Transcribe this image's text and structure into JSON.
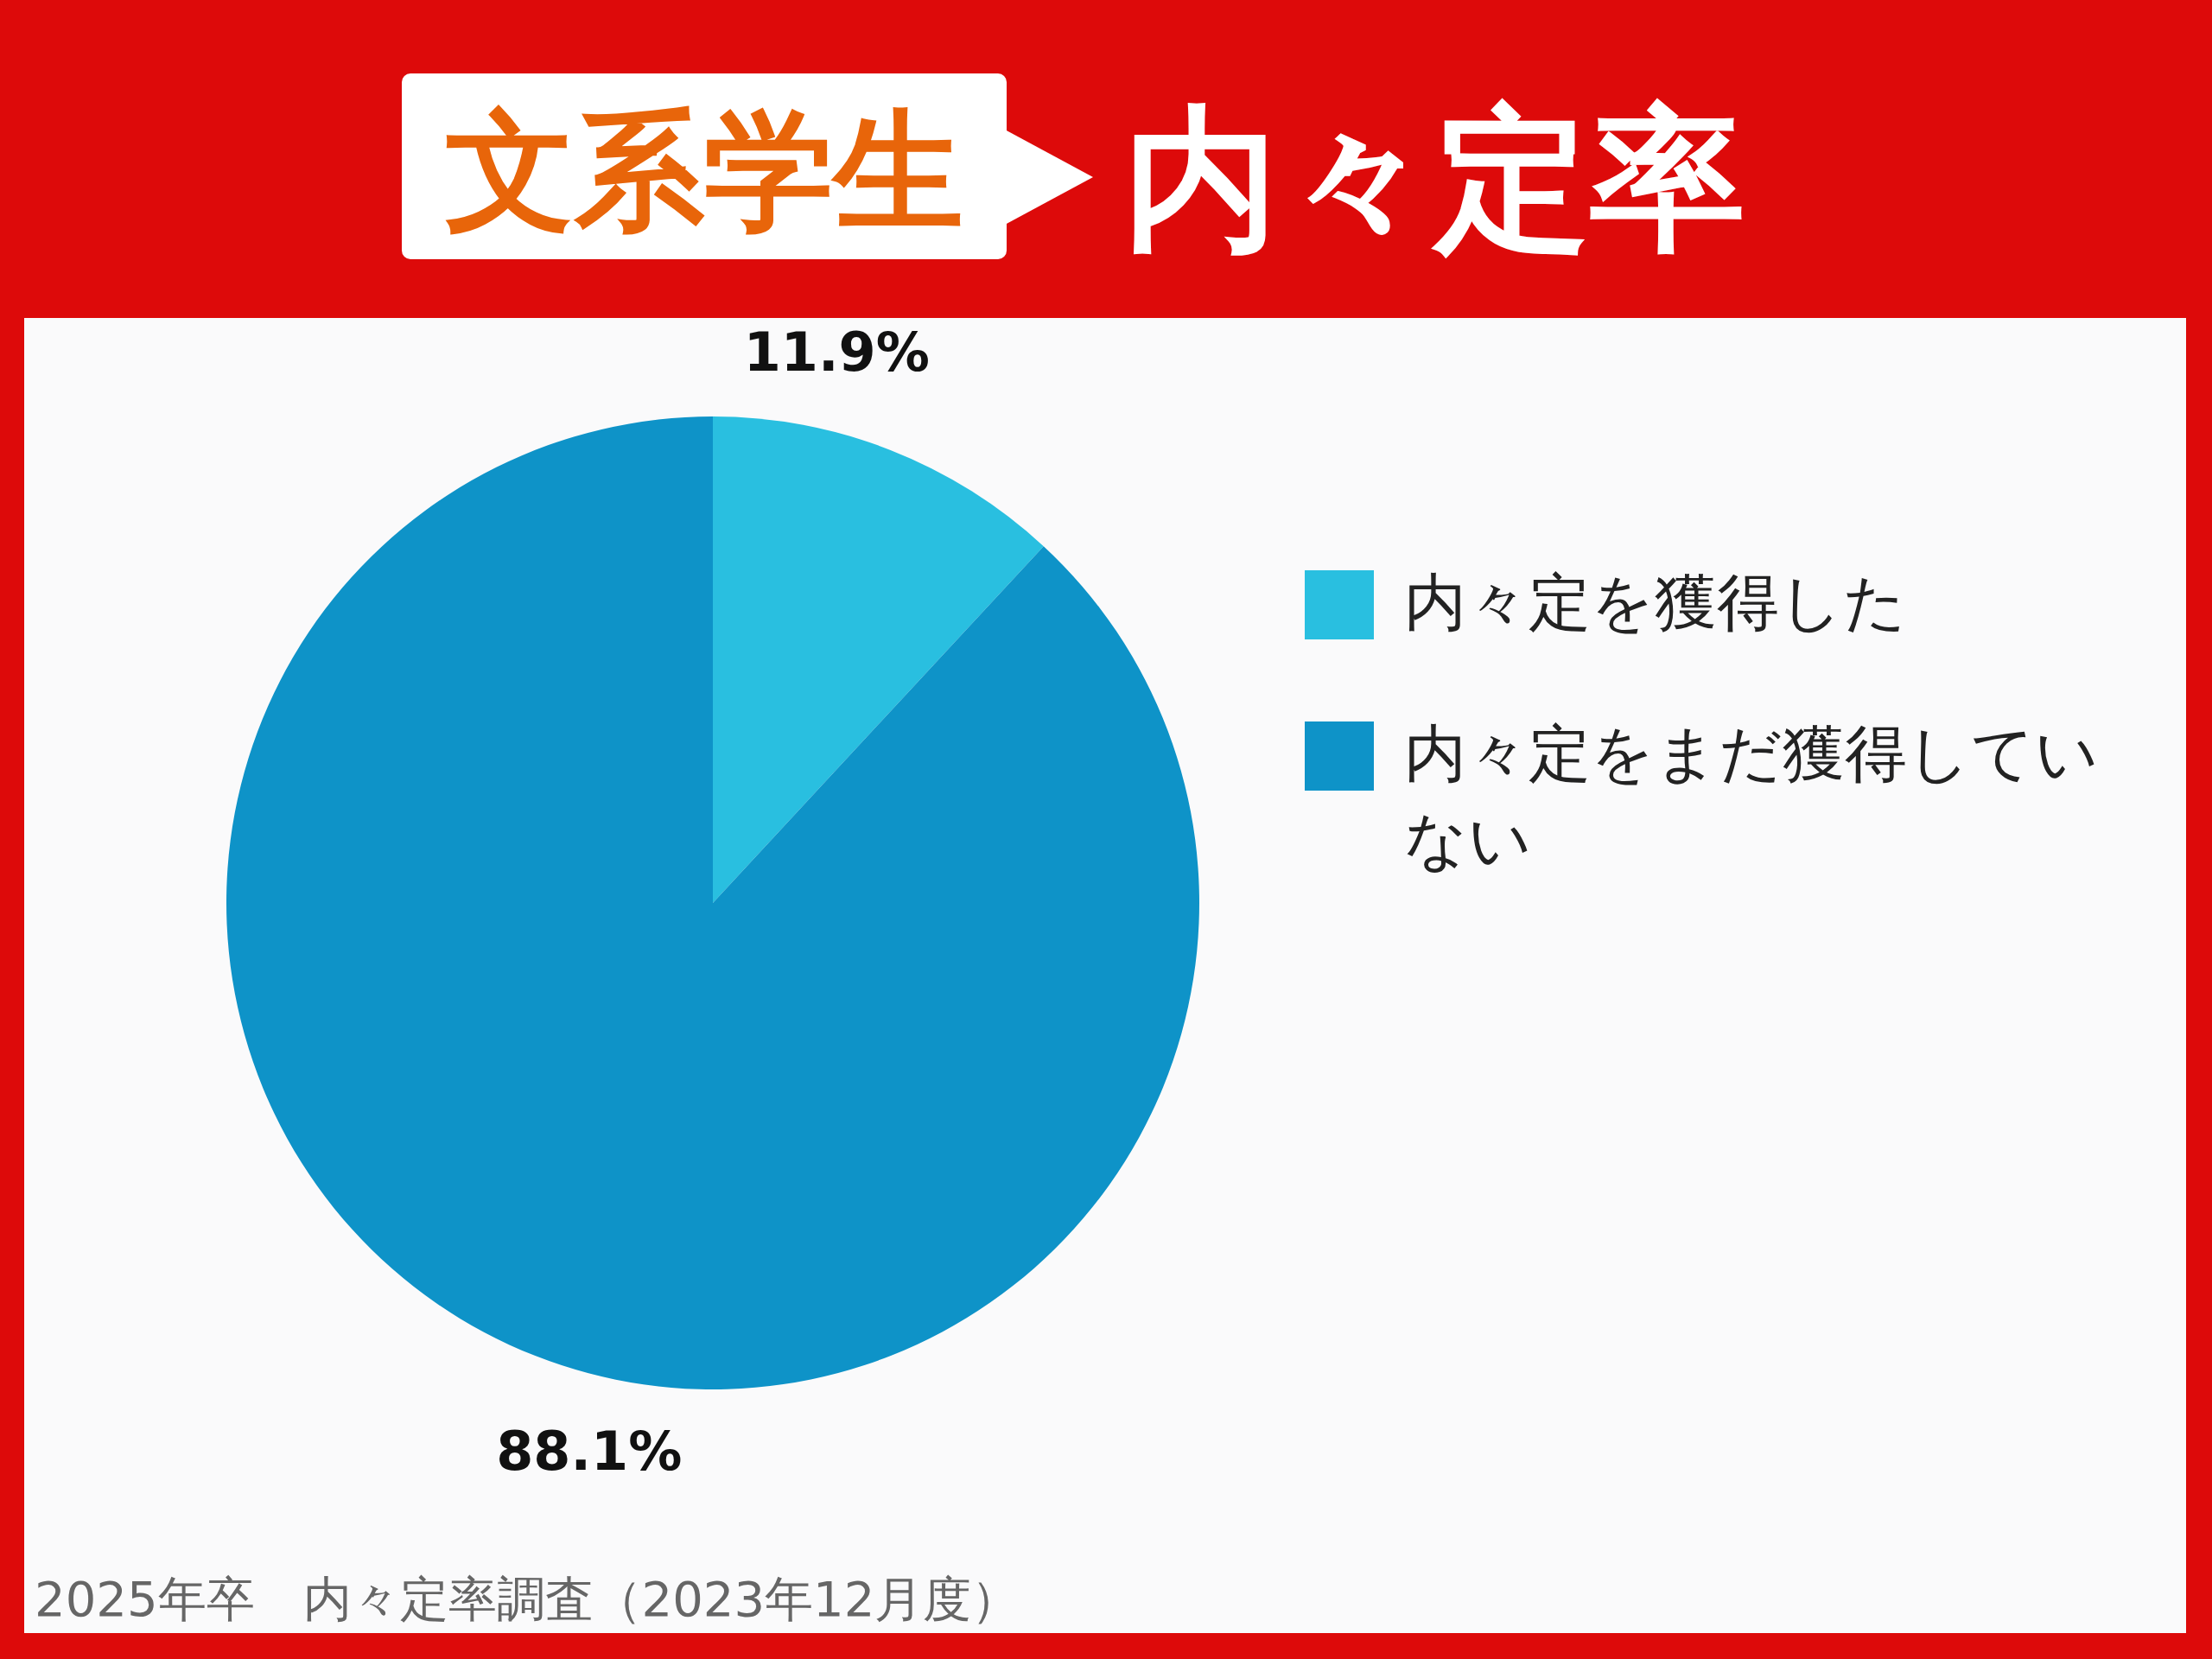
{
  "chart_data": {
    "type": "pie",
    "title": "文系学生",
    "subtitle": "内々定率",
    "categories": [
      "内々定を獲得した",
      "内々定をまだ獲得していない"
    ],
    "values": [
      11.9,
      88.1
    ],
    "colors": [
      "#29bfe0",
      "#0e93c8"
    ],
    "value_labels": [
      "11.9%",
      "88.1%"
    ],
    "legend": "right",
    "annotations": [
      "2025年卒　内々定率調査（2023年12月度）"
    ]
  }
}
